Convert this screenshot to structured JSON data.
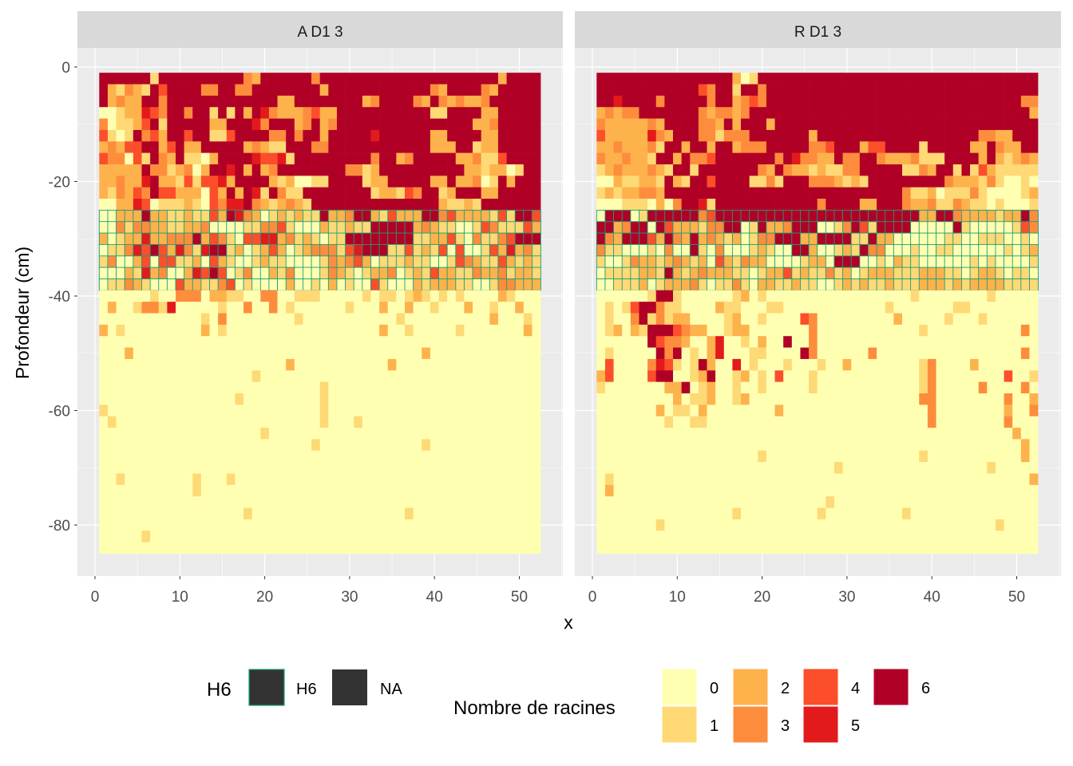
{
  "chart_data": {
    "type": "heatmap",
    "xlabel": "x",
    "ylabel": "Profondeur (cm)",
    "x_ticks": [
      0,
      10,
      20,
      30,
      40,
      50
    ],
    "y_ticks": [
      0,
      -20,
      -40,
      -60,
      -80
    ],
    "xlim": [
      -1.5,
      54.5
    ],
    "ylim": [
      -89,
      4
    ],
    "grid": true,
    "x_values": "1 to 52, step 1",
    "y_values": "-2 to -84, step 2 (rows listed top to bottom)",
    "fill_legend": {
      "title": "Nombre de racines",
      "levels": [
        "0",
        "1",
        "2",
        "3",
        "4",
        "5",
        "6"
      ],
      "colors": [
        "#FFFFB2",
        "#FED976",
        "#FEB24C",
        "#FD8D3C",
        "#FC4E2A",
        "#E31A1C",
        "#B10026"
      ]
    },
    "outline_legend": {
      "title": "H6",
      "levels": [
        "H6",
        "NA"
      ],
      "outline_color": "#1B9E77",
      "h6_rows_depth": [
        -26,
        -38
      ]
    },
    "legend_position": "bottom",
    "facets": [
      {
        "label": "A D1 3",
        "rows": [
          "6666661666666666632666666366666666666666666666626666",
          "6213216466663366336666666626666666666663266663266666",
          "6232266366666666666662266666666236666326323223666666",
          "0012254366366161626532223422666666666661166662266666",
          "3011246166666226665366623623666666666666666622366666",
          "4101634266466114666633636626666656666662266662266666",
          "2324466246226666623211666336666666666662226612266666",
          "4330416326110266665445166666666636623666662231146666",
          "2222263312302665626236666666633126666666666221220166",
          "2232256221414452666621200116666122666662262230162666",
          "2132436442220426265163116666666612214366126662266666",
          "0022540111210435563212321666666666666666211216666666",
          "0022262211211426532012121162236621422266342222141664",
          "0031332211223000011334100021121166666232110014311142",
          "2012252233362431044552312101166666666112241031134666",
          "0113546425315661201242012333145666114121404001425231",
          "1300240441120421001211000013234201112110014321142121",
          "0002152300254640130021300013210122301214221132231221",
          "0113210004221134010000200102010041000212221100133222",
          "0000001003330221100330011100000101101210101000021000",
          "0200133150000010030030100000010002002001000200100200",
          "0000000000001030000000010000000000010000000000200010",
          "2010000000002010000000000000000002001000001000000020",
          "0000000000000000000000000000000000000000000000000000",
          "0002000000000000000000000000000000000020000000000000",
          "0000000000000000000000200000000000200000000000000000",
          "0000000000000000001000000000000000000000000000000000",
          "0000000000000000000000000010000000000000000000000000",
          "0000000000000000100000000010000000000000000000000000",
          "1000000000000000000000000010000000000000000000000000",
          "0100000000000000000000000010001000000000000000000000",
          "0000000000000000000100000000000000000000000000000000",
          "0000000000000000000000000100000000000010000000000000",
          "0000000000000000000000000000000000000000000000000000",
          "0000000000000000000000000000000000000000000000000000",
          "0010000000010001000000000000000000000000000000000000",
          "0000000000010000000000000000000000000000000000000000",
          "0000000000000000000000000000000000000000000000000000",
          "0000000000000000010000000000000000001000000000000000",
          "0000000000000000000000000000000000000000000000000000",
          "0000010000000000000000000000000000000000000000000000",
          "0000000000000000000000000000000000000000000000000000"
        ]
      },
      {
        "label": "R D1 3",
        "rows": [
          "6666666666666666201666666666666666666666666666666666",
          "6666666666664366166366666666666666666666666666666666",
          "6656666366666366234366666666666666666666666666666633",
          "2323366666663233236666666666666666666666666666666662",
          "3222223266663326266626666666666666666666666666666666",
          "4222225326663313336666666266666666666666666663322666",
          "2232223166266266233366666334666244666616666622632266",
          "3223221662633466666663653322633663222311166662621232",
          "1232223216616666666326322121133666661132661614211111",
          "0021122162166466661131666333212166666666632221310010",
          "1212233266666666666666666666666666663112011131000012",
          "0001110203665166666666666636666226663223113211010001",
          "0666016666663466666666666666666666666622663222212263",
          "6623660642221336601622366600136416666000006100000143",
          "6326664263262321201336662266661162200000011001110010",
          "3110001030061030001210066200121633000100110000001012",
          "1001322123212042132200001220666001021100000010100001",
          "0111122162123222110122412113120122211122211012210110",
          "0011120122231011310221121100121211211122212122221111",
          "0000001661000000120100000000000000000100000000100000",
          "0101466311000021100011000000000000100000001100000000",
          "0100361312200001200100004300000000020000010001000000",
          "0120216664322001220000000300000000000010000000000030",
          "0000006433200250010200600300000000000000000000000000",
          "0100000636010250001100006300000030000000000000000030",
          "0400003541016200501000100010020000000013000020000000",
          "2400004660012600120104000100000000000013000000004001",
          "1000000022601200100100000100000000000013000003000030",
          "0000000002011200120000000000000000000033000000003002",
          "0000000201102000000002000000000000000003000000002003",
          "0000000010011000000000000000000000000003000000003000",
          "0000000000000000000000000000000000000000000000000200",
          "0000000000000000000000000000000000000000000000000020",
          "0000000000000000000100000000000000000010000000000020",
          "0000000000000000000000000000100000000000000000100000",
          "0100000000000000000000000000000000000000000000000002",
          "0200000000000000000000000000000000000000000000000000",
          "0000000000000000000000000001000000000000000000000000",
          "0000000000000000100000000010000000001000000000000000",
          "0000000100000000000000000000000000000000000000010000",
          "0000000000000000000000000000000000000000000000000000",
          "0000000000000000000000000000000000000000000000000000"
        ]
      }
    ]
  }
}
